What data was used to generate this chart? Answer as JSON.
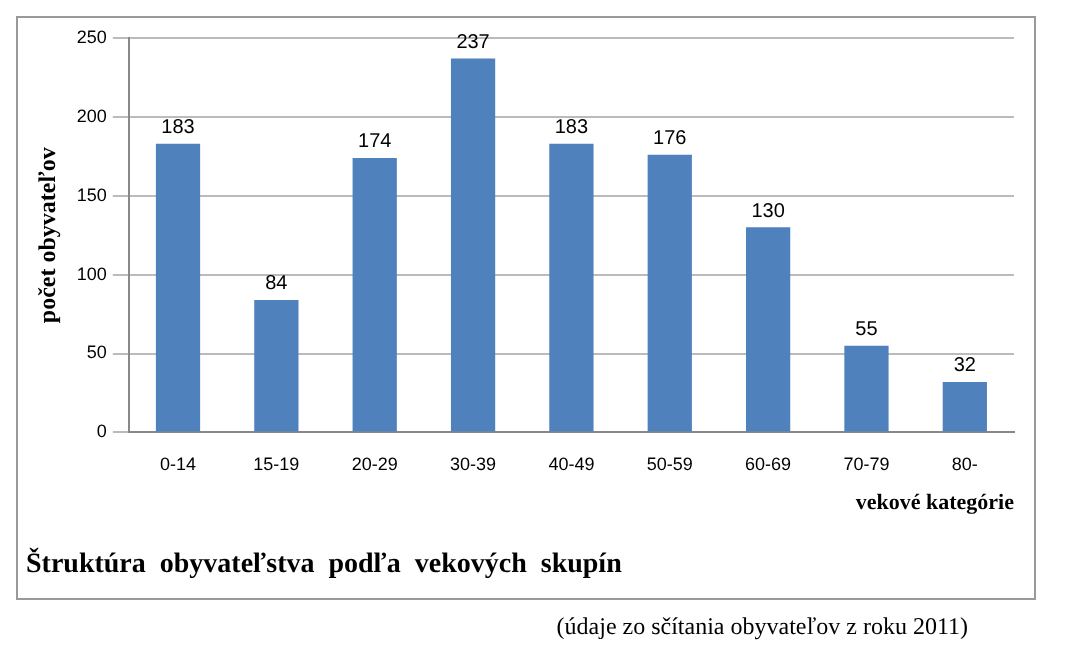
{
  "chart_data": {
    "type": "bar",
    "title": "Štruktúra  obyvateľstva  podľa  vekových  skupín",
    "xlabel": "vekové kategórie",
    "ylabel": "počet obyvateľov",
    "annotations": [
      "(údaje zo sčítania obyvateľov z roku 2011)"
    ],
    "categories": [
      "0-14",
      "15-19",
      "20-29",
      "30-39",
      "40-49",
      "50-59",
      "60-69",
      "70-79",
      "80-"
    ],
    "values": [
      183,
      84,
      174,
      237,
      183,
      176,
      130,
      55,
      32
    ],
    "color": "#4f81bd",
    "ylim": [
      0,
      250
    ],
    "yticks": [
      0,
      50,
      100,
      150,
      200,
      250
    ],
    "grid": "y",
    "data_labels": true,
    "legend": false
  }
}
